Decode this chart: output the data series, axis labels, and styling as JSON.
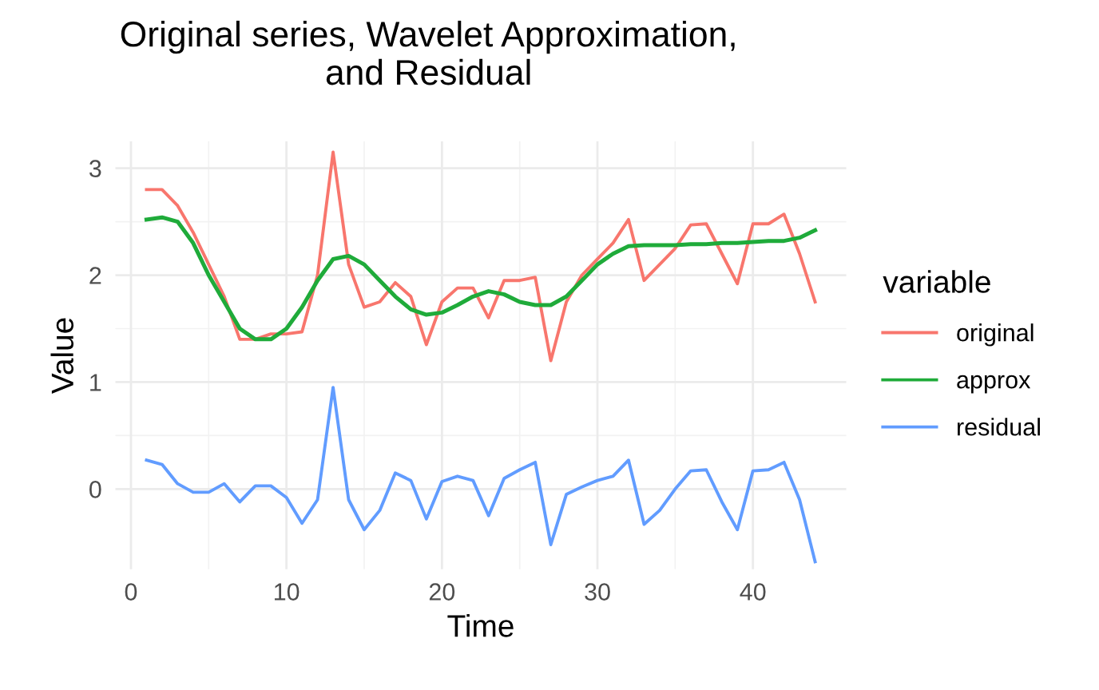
{
  "chart_data": {
    "type": "line",
    "title": "Original series, Wavelet Approximation,\nand Residual",
    "xlabel": "Time",
    "ylabel": "Value",
    "legend_title": "variable",
    "legend": "right",
    "grid": true,
    "line_style": "solid",
    "x": [
      1,
      2,
      3,
      4,
      5,
      6,
      7,
      8,
      9,
      10,
      11,
      12,
      13,
      14,
      15,
      16,
      17,
      18,
      19,
      20,
      21,
      22,
      23,
      24,
      25,
      26,
      27,
      28,
      29,
      30,
      31,
      32,
      33,
      34,
      35,
      36,
      37,
      38,
      39,
      40,
      41,
      42,
      43,
      44
    ],
    "xlim": [
      -1,
      46
    ],
    "xticks": [
      0,
      10,
      20,
      30,
      40
    ],
    "ylim": [
      -0.75,
      3.25
    ],
    "yticks": [
      0,
      1,
      2,
      3
    ],
    "series": [
      {
        "name": "original",
        "color": "#f8766d",
        "values": [
          2.8,
          2.8,
          2.65,
          2.4,
          2.1,
          1.8,
          1.4,
          1.4,
          1.45,
          1.45,
          1.47,
          2.0,
          3.15,
          2.1,
          1.7,
          1.75,
          1.93,
          1.8,
          1.35,
          1.75,
          1.88,
          1.88,
          1.6,
          1.95,
          1.95,
          1.98,
          1.2,
          1.75,
          2.0,
          2.15,
          2.3,
          2.52,
          1.95,
          2.1,
          2.25,
          2.47,
          2.48,
          2.2,
          1.92,
          2.48,
          2.48,
          2.57,
          2.2,
          1.75
        ]
      },
      {
        "name": "approx",
        "color": "#1fab3a",
        "values": [
          2.52,
          2.54,
          2.5,
          2.3,
          2.0,
          1.75,
          1.5,
          1.4,
          1.4,
          1.5,
          1.7,
          1.95,
          2.15,
          2.18,
          2.1,
          1.95,
          1.8,
          1.68,
          1.63,
          1.65,
          1.72,
          1.8,
          1.85,
          1.82,
          1.75,
          1.72,
          1.72,
          1.8,
          1.95,
          2.1,
          2.2,
          2.27,
          2.28,
          2.28,
          2.28,
          2.29,
          2.29,
          2.3,
          2.3,
          2.31,
          2.32,
          2.32,
          2.35,
          2.42
        ]
      },
      {
        "name": "residual",
        "color": "#619cff",
        "values": [
          0.27,
          0.23,
          0.05,
          -0.03,
          -0.03,
          0.05,
          -0.12,
          0.03,
          0.03,
          -0.08,
          -0.32,
          -0.1,
          0.95,
          -0.1,
          -0.38,
          -0.2,
          0.15,
          0.08,
          -0.28,
          0.07,
          0.12,
          0.08,
          -0.25,
          0.1,
          0.18,
          0.25,
          -0.52,
          -0.05,
          0.02,
          0.08,
          0.12,
          0.27,
          -0.33,
          -0.2,
          0.0,
          0.17,
          0.18,
          -0.12,
          -0.38,
          0.17,
          0.18,
          0.25,
          -0.1,
          -0.68
        ]
      }
    ]
  }
}
